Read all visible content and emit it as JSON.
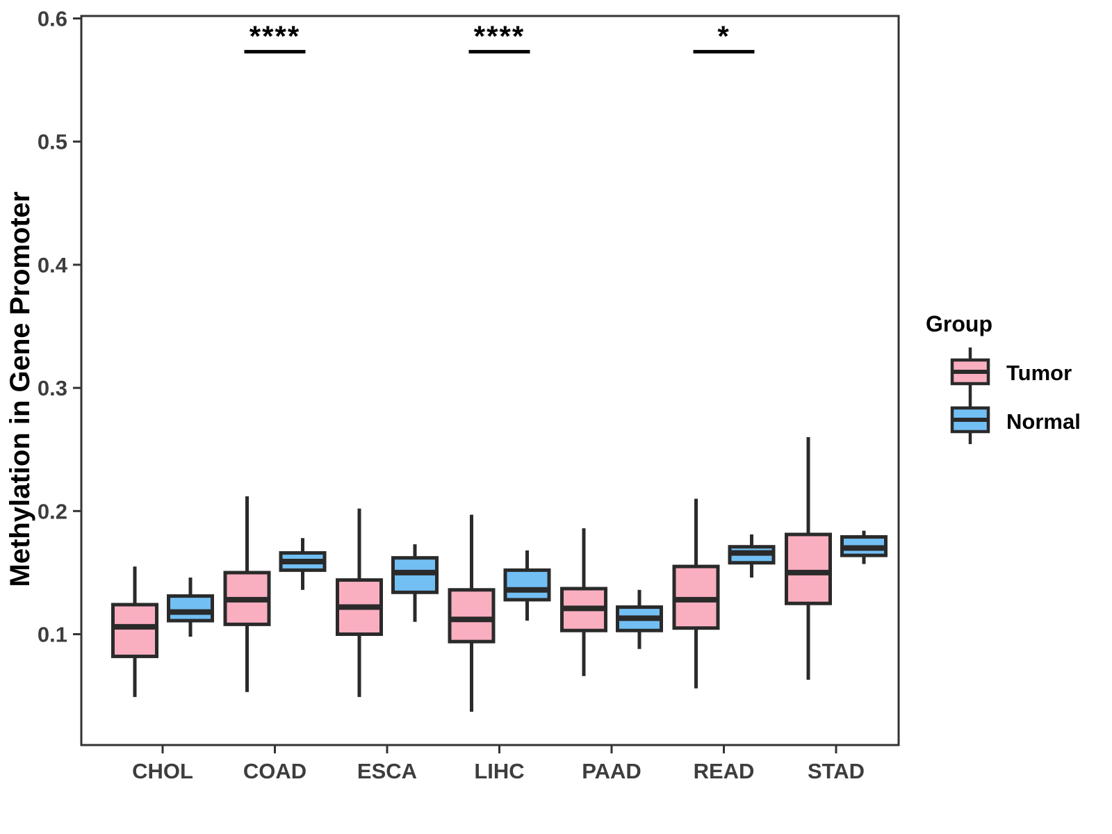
{
  "chart_data": {
    "type": "boxplot",
    "title": "",
    "ylabel": "Methylation in Gene Promoter",
    "xlabel": "",
    "categories": [
      "CHOL",
      "COAD",
      "ESCA",
      "LIHC",
      "PAAD",
      "READ",
      "STAD"
    ],
    "ylim": [
      0.01,
      0.602
    ],
    "yticks": [
      0.1,
      0.2,
      0.3,
      0.4,
      0.5,
      0.6
    ],
    "ytick_labels": [
      "0.1",
      "0.2",
      "0.3",
      "0.4",
      "0.5",
      "0.6"
    ],
    "grid": "off",
    "legend_position": "right",
    "legend_title": "Group",
    "series": [
      {
        "name": "Tumor",
        "color": "#FAAFC1",
        "boxes": [
          {
            "category": "CHOL",
            "whisker_low": 0.049,
            "q1": 0.082,
            "median": 0.106,
            "q3": 0.124,
            "whisker_high": 0.155
          },
          {
            "category": "COAD",
            "whisker_low": 0.053,
            "q1": 0.108,
            "median": 0.128,
            "q3": 0.15,
            "whisker_high": 0.212
          },
          {
            "category": "ESCA",
            "whisker_low": 0.049,
            "q1": 0.1,
            "median": 0.122,
            "q3": 0.144,
            "whisker_high": 0.202
          },
          {
            "category": "LIHC",
            "whisker_low": 0.037,
            "q1": 0.094,
            "median": 0.112,
            "q3": 0.136,
            "whisker_high": 0.197
          },
          {
            "category": "PAAD",
            "whisker_low": 0.066,
            "q1": 0.103,
            "median": 0.121,
            "q3": 0.137,
            "whisker_high": 0.186
          },
          {
            "category": "READ",
            "whisker_low": 0.056,
            "q1": 0.105,
            "median": 0.128,
            "q3": 0.155,
            "whisker_high": 0.21
          },
          {
            "category": "STAD",
            "whisker_low": 0.063,
            "q1": 0.125,
            "median": 0.15,
            "q3": 0.181,
            "whisker_high": 0.26
          }
        ]
      },
      {
        "name": "Normal",
        "color": "#72BFF4",
        "boxes": [
          {
            "category": "CHOL",
            "whisker_low": 0.098,
            "q1": 0.111,
            "median": 0.118,
            "q3": 0.131,
            "whisker_high": 0.146
          },
          {
            "category": "COAD",
            "whisker_low": 0.136,
            "q1": 0.152,
            "median": 0.159,
            "q3": 0.166,
            "whisker_high": 0.178
          },
          {
            "category": "ESCA",
            "whisker_low": 0.11,
            "q1": 0.134,
            "median": 0.15,
            "q3": 0.162,
            "whisker_high": 0.173
          },
          {
            "category": "LIHC",
            "whisker_low": 0.111,
            "q1": 0.128,
            "median": 0.136,
            "q3": 0.152,
            "whisker_high": 0.168
          },
          {
            "category": "PAAD",
            "whisker_low": 0.088,
            "q1": 0.103,
            "median": 0.113,
            "q3": 0.122,
            "whisker_high": 0.136
          },
          {
            "category": "READ",
            "whisker_low": 0.146,
            "q1": 0.158,
            "median": 0.166,
            "q3": 0.171,
            "whisker_high": 0.181
          },
          {
            "category": "STAD",
            "whisker_low": 0.157,
            "q1": 0.164,
            "median": 0.17,
            "q3": 0.179,
            "whisker_high": 0.184
          }
        ]
      }
    ],
    "annotations": [
      {
        "category": "COAD",
        "label": "****",
        "y_value": 0.573
      },
      {
        "category": "LIHC",
        "label": "****",
        "y_value": 0.573
      },
      {
        "category": "READ",
        "label": "*",
        "y_value": 0.573
      }
    ],
    "style_colors": {
      "box_stroke": "#2a2a2a",
      "panel_border": "#333333",
      "tick_text": "#3d3d3d"
    }
  }
}
